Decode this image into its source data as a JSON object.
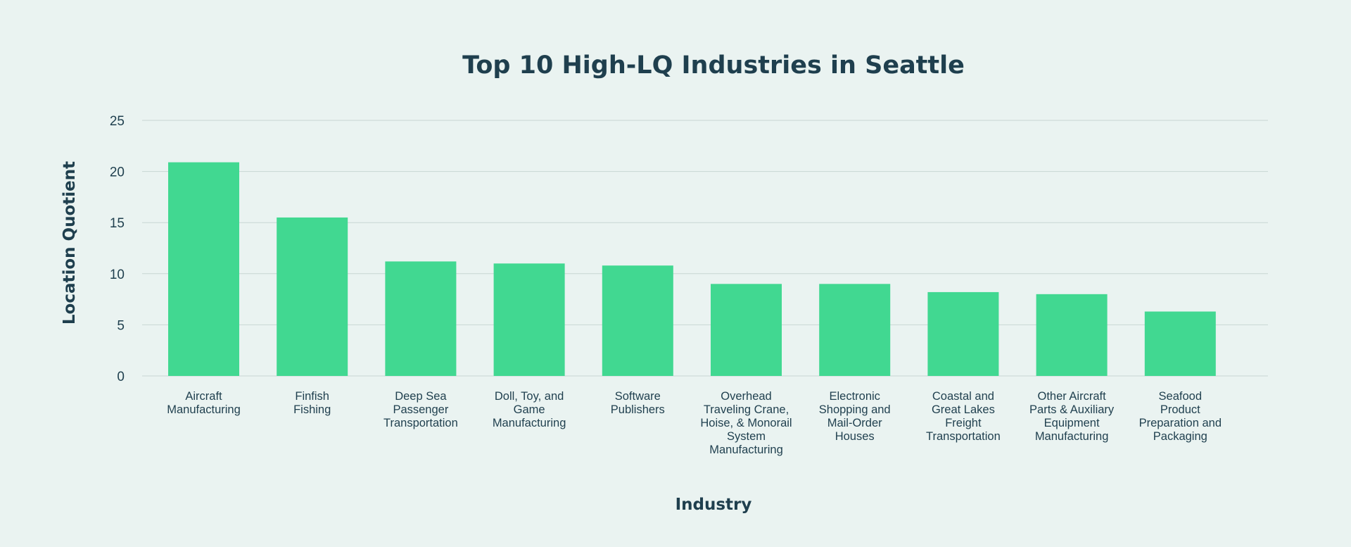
{
  "chart_data": {
    "type": "bar",
    "title": "Top 10 High-LQ Industries in Seattle",
    "xlabel": "Industry",
    "ylabel": "Location Quotient",
    "ylim": [
      0,
      25
    ],
    "yticks": [
      0,
      5,
      10,
      15,
      20,
      25
    ],
    "grid": true,
    "legend": "none",
    "bar_color": "#41d891",
    "categories": [
      [
        "Aircraft",
        "Manufacturing"
      ],
      [
        "Finfish",
        "Fishing"
      ],
      [
        "Deep Sea",
        "Passenger",
        "Transportation"
      ],
      [
        "Doll, Toy, and",
        "Game",
        "Manufacturing"
      ],
      [
        "Software",
        "Publishers"
      ],
      [
        "Overhead",
        "Traveling Crane,",
        "Hoise, & Monorail",
        "System",
        "Manufacturing"
      ],
      [
        "Electronic",
        "Shopping and",
        "Mail-Order",
        "Houses"
      ],
      [
        "Coastal and",
        "Great Lakes",
        "Freight",
        "Transportation"
      ],
      [
        "Other Aircraft",
        "Parts & Auxiliary",
        "Equipment",
        "Manufacturing"
      ],
      [
        "Seafood",
        "Product",
        "Preparation and",
        "Packaging"
      ]
    ],
    "values": [
      20.9,
      15.5,
      11.2,
      11.0,
      10.8,
      9.0,
      9.0,
      8.2,
      8.0,
      6.3
    ]
  }
}
